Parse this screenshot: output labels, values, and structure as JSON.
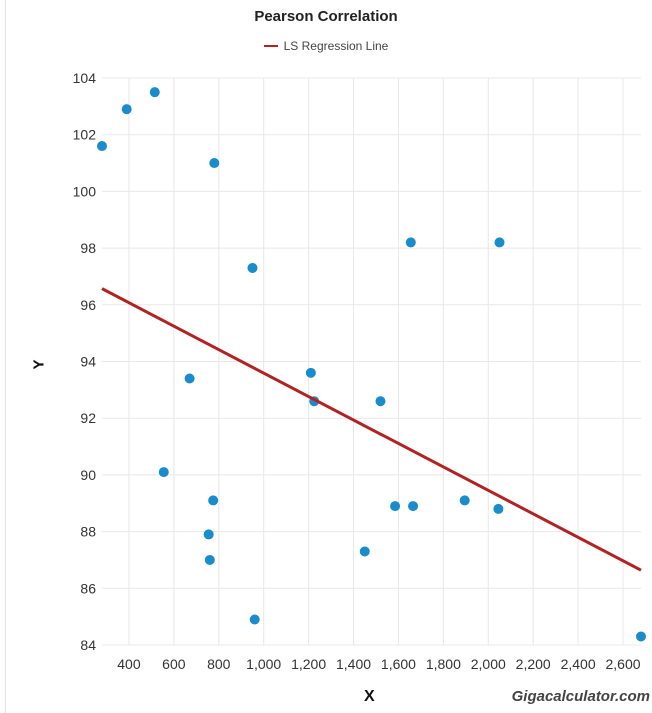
{
  "chart_data": {
    "type": "scatter",
    "title": "Pearson Correlation",
    "xlabel": "X",
    "ylabel": "Y",
    "credit": "Gigacalculator.com",
    "legend": [
      {
        "name": "LS Regression Line",
        "color": "#b22222"
      }
    ],
    "legend_position": "top-center",
    "grid": true,
    "xlim": [
      280,
      2680
    ],
    "ylim": [
      84,
      104
    ],
    "xticks": [
      400,
      600,
      800,
      1000,
      1200,
      1400,
      1600,
      1800,
      2000,
      2200,
      2400,
      2600
    ],
    "xtick_labels": [
      "400",
      "600",
      "800",
      "1,000",
      "1,200",
      "1,400",
      "1,600",
      "1,800",
      "2,000",
      "2,200",
      "2,400",
      "2,600"
    ],
    "yticks": [
      84,
      86,
      88,
      90,
      92,
      94,
      96,
      98,
      100,
      102,
      104
    ],
    "ytick_labels": [
      "84",
      "86",
      "88",
      "90",
      "92",
      "94",
      "96",
      "98",
      "100",
      "102",
      "104"
    ],
    "series": [
      {
        "type": "scatter",
        "color": "#1a8ccc",
        "points": [
          {
            "x": 280,
            "y": 101.6
          },
          {
            "x": 390,
            "y": 102.9
          },
          {
            "x": 515,
            "y": 103.5
          },
          {
            "x": 555,
            "y": 90.1
          },
          {
            "x": 670,
            "y": 93.4
          },
          {
            "x": 755,
            "y": 87.9
          },
          {
            "x": 760,
            "y": 87.0
          },
          {
            "x": 775,
            "y": 89.1
          },
          {
            "x": 780,
            "y": 101.0
          },
          {
            "x": 950,
            "y": 97.3
          },
          {
            "x": 960,
            "y": 84.9
          },
          {
            "x": 1210,
            "y": 93.6
          },
          {
            "x": 1225,
            "y": 92.6
          },
          {
            "x": 1450,
            "y": 87.3
          },
          {
            "x": 1520,
            "y": 92.6
          },
          {
            "x": 1585,
            "y": 88.9
          },
          {
            "x": 1655,
            "y": 98.2
          },
          {
            "x": 1665,
            "y": 88.9
          },
          {
            "x": 1895,
            "y": 89.1
          },
          {
            "x": 2045,
            "y": 88.8
          },
          {
            "x": 2050,
            "y": 98.2
          },
          {
            "x": 2680,
            "y": 84.3
          }
        ]
      },
      {
        "name": "LS Regression Line",
        "type": "line",
        "color": "#b22222",
        "points": [
          {
            "x": 280,
            "y": 96.57
          },
          {
            "x": 2680,
            "y": 86.64
          }
        ]
      }
    ]
  }
}
